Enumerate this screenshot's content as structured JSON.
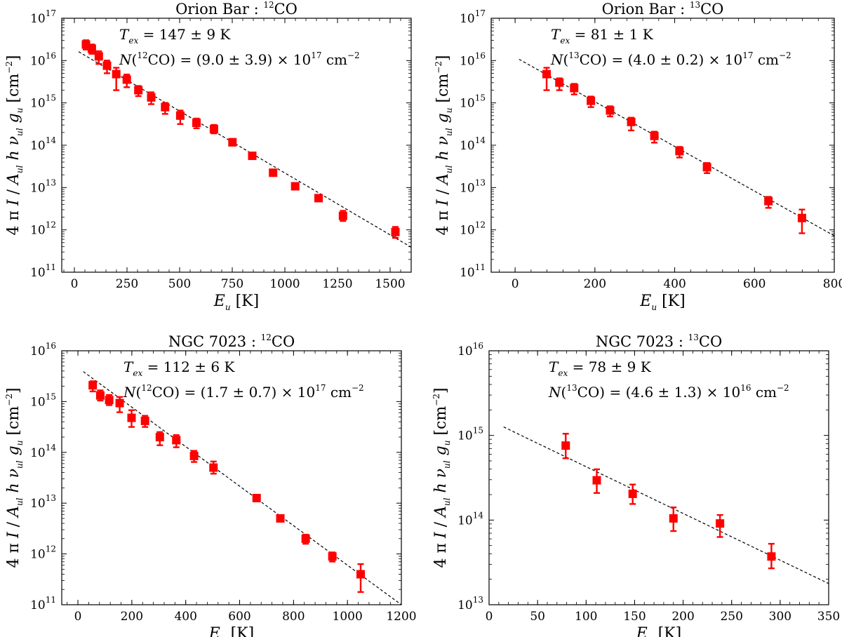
{
  "colors": {
    "marker": "#ff0000",
    "fit": "#000000",
    "axes": "#000000"
  },
  "chart_data": [
    {
      "type": "scatter",
      "panel": "top-left",
      "title": {
        "main": "Orion Bar : ",
        "sup": "12",
        "species": "CO"
      },
      "xlabel": {
        "var": "E",
        "sub": "u",
        "unit": "[K]"
      },
      "ylabel": "4 π I / A_ul h ν_ul g_u [cm^-2]",
      "xlim": [
        -60,
        1600
      ],
      "ylim_log10": [
        11,
        17
      ],
      "xticks": [
        0,
        250,
        500,
        750,
        1000,
        1250,
        1500
      ],
      "yticks_exp": [
        11,
        12,
        13,
        14,
        15,
        16,
        17
      ],
      "annotations": [
        {
          "lhs": "T",
          "sub": "ex",
          "rhs": " = 147 ± 9 K"
        },
        {
          "pre": "N(",
          "sup": "12",
          "post": "CO) = (9.0 ± 3.9) × 10",
          "exp": "17",
          "unit": " cm",
          "uexp": "−2"
        }
      ],
      "fit": {
        "x": [
          20,
          1600
        ],
        "log10y": [
          16.21,
          11.59
        ]
      },
      "series": [
        {
          "name": "12CO",
          "x": [
            55,
            83,
            116,
            155,
            199,
            249,
            304,
            365,
            431,
            503,
            580,
            663,
            751,
            845,
            944,
            1049,
            1160,
            1276,
            1525
          ],
          "log10y": [
            16.38,
            16.28,
            16.1,
            15.88,
            15.68,
            15.55,
            15.3,
            15.13,
            14.9,
            14.7,
            14.53,
            14.38,
            14.07,
            13.75,
            13.35,
            13.03,
            12.75,
            12.33,
            11.95
          ],
          "err_up": [
            0.1,
            0.1,
            0.12,
            0.12,
            0.15,
            0.12,
            0.1,
            0.12,
            0.1,
            0.12,
            0.1,
            0.1,
            0.08,
            0.07,
            0.06,
            0.06,
            0.06,
            0.12,
            0.12
          ],
          "err_dn": [
            0.12,
            0.12,
            0.18,
            0.18,
            0.38,
            0.18,
            0.14,
            0.16,
            0.16,
            0.2,
            0.13,
            0.1,
            0.08,
            0.07,
            0.06,
            0.06,
            0.06,
            0.12,
            0.14
          ]
        }
      ]
    },
    {
      "type": "scatter",
      "panel": "top-right",
      "title": {
        "main": "Orion Bar : ",
        "sup": "13",
        "species": "CO"
      },
      "xlabel": {
        "var": "E",
        "sub": "u",
        "unit": "[K]"
      },
      "ylabel": "4 π I / A_ul h ν_ul g_u [cm^-2]",
      "xlim": [
        -60,
        800
      ],
      "ylim_log10": [
        11,
        17
      ],
      "xticks": [
        0,
        200,
        400,
        600,
        800
      ],
      "yticks_exp": [
        11,
        12,
        13,
        14,
        15,
        16,
        17
      ],
      "annotations": [
        {
          "lhs": "T",
          "sub": "ex",
          "rhs": " = 81 ± 1 K"
        },
        {
          "pre": "N(",
          "sup": "13",
          "post": "CO) = (4.0 ± 0.2) × 10",
          "exp": "17",
          "unit": " cm",
          "uexp": "−2"
        }
      ],
      "fit": {
        "x": [
          10,
          800
        ],
        "log10y": [
          16.03,
          11.86
        ]
      },
      "series": [
        {
          "name": "13CO",
          "x": [
            79,
            111,
            148,
            190,
            238,
            291,
            349,
            412,
            481,
            635,
            719
          ],
          "log10y": [
            15.68,
            15.48,
            15.35,
            15.05,
            14.82,
            14.55,
            14.22,
            13.86,
            13.48,
            12.68,
            12.28
          ],
          "err_up": [
            0.15,
            0.1,
            0.1,
            0.1,
            0.1,
            0.1,
            0.1,
            0.1,
            0.1,
            0.1,
            0.2
          ],
          "err_dn": [
            0.38,
            0.18,
            0.15,
            0.15,
            0.14,
            0.2,
            0.16,
            0.15,
            0.14,
            0.16,
            0.36
          ]
        }
      ]
    },
    {
      "type": "scatter",
      "panel": "bottom-left",
      "title": {
        "main": "NGC 7023 : ",
        "sup": "12",
        "species": "CO"
      },
      "xlabel": {
        "var": "E",
        "sub": "u",
        "unit": "[K]"
      },
      "ylabel": "4 π I / A_ul h ν_ul g_u [cm^-2]",
      "xlim": [
        -60,
        1200
      ],
      "ylim_log10": [
        11,
        16
      ],
      "xticks": [
        0,
        200,
        400,
        600,
        800,
        1000,
        1200
      ],
      "yticks_exp": [
        11,
        12,
        13,
        14,
        15,
        16
      ],
      "annotations": [
        {
          "lhs": "T",
          "sub": "ex",
          "rhs": " = 112 ± 6 K"
        },
        {
          "pre": "N(",
          "sup": "12",
          "post": "CO) = (1.7 ± 0.7) × 10",
          "exp": "17",
          "unit": " cm",
          "uexp": "−2"
        }
      ],
      "fit": {
        "x": [
          20,
          1200
        ],
        "log10y": [
          15.59,
          11.0
        ]
      },
      "series": [
        {
          "name": "12CO",
          "x": [
            55,
            83,
            116,
            155,
            199,
            249,
            304,
            365,
            431,
            503,
            663,
            751,
            845,
            944,
            1049
          ],
          "log10y": [
            15.32,
            15.12,
            15.03,
            14.97,
            14.68,
            14.62,
            14.3,
            14.24,
            13.93,
            13.7,
            13.1,
            12.7,
            12.3,
            11.95,
            11.6
          ],
          "err_up": [
            0.08,
            0.1,
            0.1,
            0.12,
            0.15,
            0.1,
            0.1,
            0.1,
            0.1,
            0.12,
            0.05,
            0.05,
            0.08,
            0.08,
            0.2
          ],
          "err_dn": [
            0.12,
            0.1,
            0.1,
            0.18,
            0.18,
            0.12,
            0.16,
            0.14,
            0.12,
            0.12,
            0.05,
            0.05,
            0.1,
            0.1,
            0.35
          ]
        }
      ]
    },
    {
      "type": "scatter",
      "panel": "bottom-right",
      "title": {
        "main": "NGC 7023 : ",
        "sup": "13",
        "species": "CO"
      },
      "xlabel": {
        "var": "E",
        "sub": "u",
        "unit": "[K]"
      },
      "ylabel": "4 π I / A_ul h ν_ul g_u [cm^-2]",
      "xlim": [
        0,
        350
      ],
      "ylim_log10": [
        13,
        16
      ],
      "xticks": [
        0,
        50,
        100,
        150,
        200,
        250,
        300,
        350
      ],
      "yticks_exp": [
        13,
        14,
        15,
        16
      ],
      "annotations": [
        {
          "lhs": "T",
          "sub": "ex",
          "rhs": " = 78 ± 9 K"
        },
        {
          "pre": "N(",
          "sup": "13",
          "post": "CO) = (4.6 ± 1.3) × 10",
          "exp": "16",
          "unit": " cm",
          "uexp": "−2"
        }
      ],
      "fit": {
        "x": [
          15,
          350
        ],
        "log10y": [
          15.1,
          13.25
        ]
      },
      "series": [
        {
          "name": "13CO",
          "x": [
            79,
            111,
            148,
            190,
            238,
            291
          ],
          "log10y": [
            14.88,
            14.47,
            14.31,
            14.02,
            13.96,
            13.57
          ],
          "err_up": [
            0.14,
            0.13,
            0.11,
            0.13,
            0.1,
            0.15
          ],
          "err_dn": [
            0.15,
            0.15,
            0.12,
            0.15,
            0.16,
            0.14
          ]
        }
      ]
    }
  ]
}
